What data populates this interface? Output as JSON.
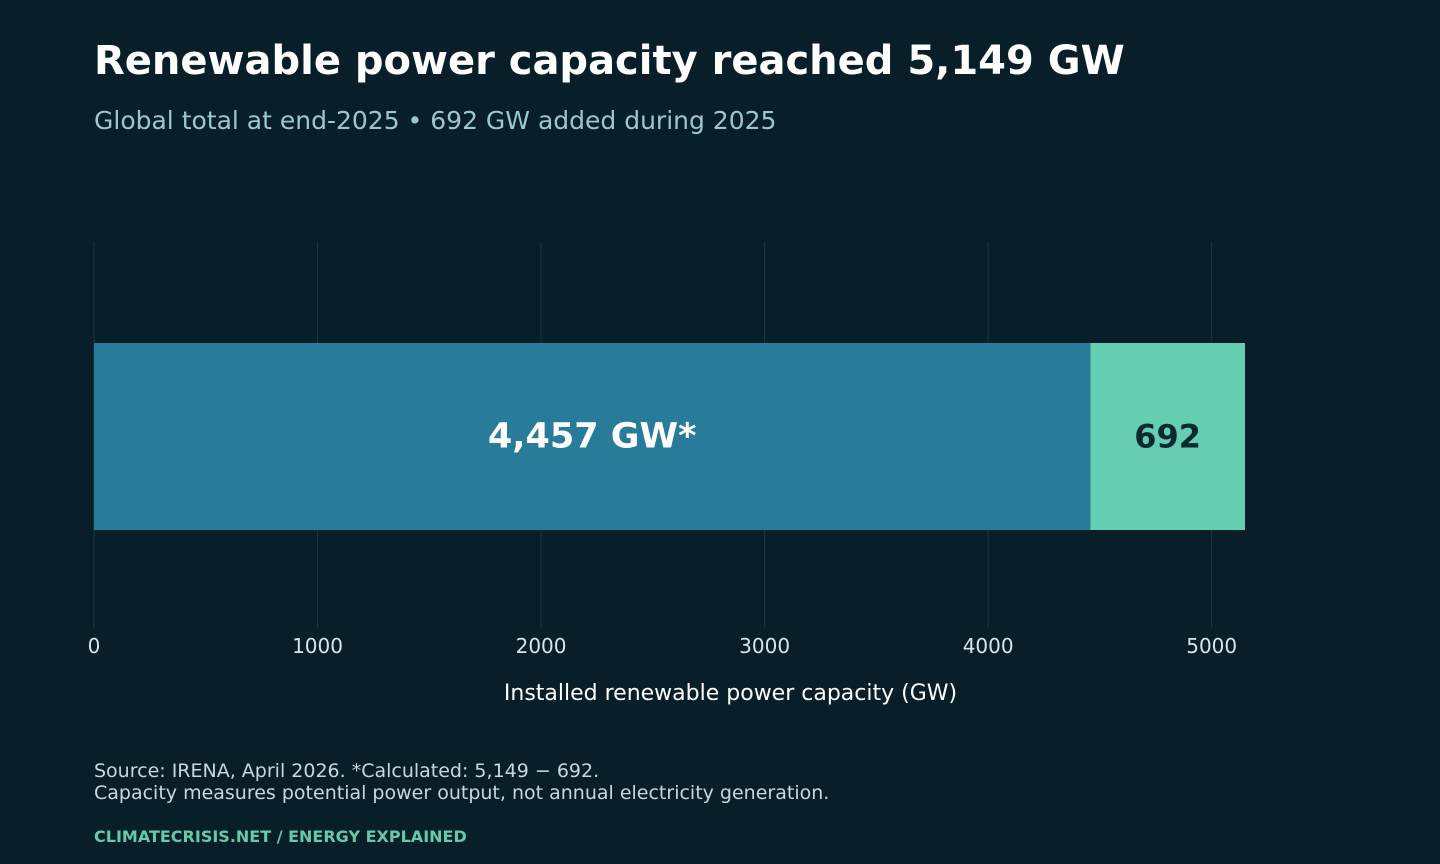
{
  "header": {
    "title": "Renewable power capacity reached 5,149 GW",
    "subtitle": "Global total at end-2025 • 692 GW added during 2025"
  },
  "footer": {
    "source_line1": "Source: IRENA, April 2026. *Calculated: 5,149 − 692.",
    "source_line2": "Capacity measures potential power output, not annual electricity generation.",
    "brand": "CLIMATECRISIS.NET  /  ENERGY EXPLAINED"
  },
  "colors": {
    "background": "#081e29",
    "base_segment": "#287b99",
    "added_segment": "#66ceb0",
    "gridline": "#1b3643"
  },
  "chart_data": {
    "type": "bar",
    "orientation": "horizontal",
    "stacked": true,
    "title": "Renewable power capacity reached 5,149 GW",
    "subtitle": "Global total at end-2025 • 692 GW added during 2025",
    "xlabel": "Installed renewable power capacity (GW)",
    "ylabel": "",
    "xlim": [
      0,
      5149
    ],
    "xticks": [
      0,
      1000,
      2000,
      3000,
      4000,
      5000
    ],
    "grid": true,
    "series": [
      {
        "value": 4457,
        "label": "4,457 GW*",
        "color": "#287b99"
      },
      {
        "value": 692,
        "label": "692",
        "color": "#66ceb0"
      }
    ]
  }
}
